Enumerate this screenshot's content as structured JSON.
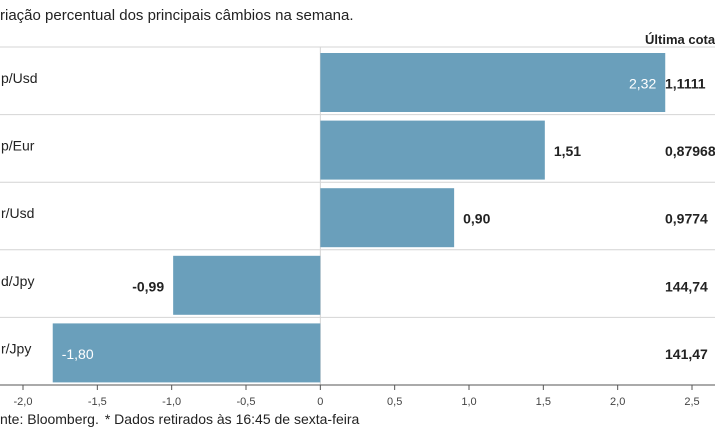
{
  "subtitle": "riação percentual dos principais câmbios na semana.",
  "last_quote_header": "Última cotaç",
  "colors": {
    "bar": "#6a9fbb",
    "grid": "#d4d4d4",
    "axis": "#555555",
    "text": "#222222"
  },
  "chart_data": {
    "type": "bar",
    "orientation": "horizontal",
    "title": "Variação percentual dos principais câmbios na semana",
    "categories": [
      "p/Usd",
      "p/Eur",
      "r/Usd",
      "d/Jpy",
      "r/Jpy"
    ],
    "values": [
      2.32,
      1.51,
      0.9,
      -0.99,
      -1.8
    ],
    "value_labels": [
      "2,32",
      "1,51",
      "0,90",
      "-0,99",
      "-1,80"
    ],
    "last_quotes": [
      "1,1111",
      "0,87968",
      "0,9774",
      "144,74",
      "141,47"
    ],
    "xlim": [
      -2.0,
      2.5
    ],
    "x_ticks": [
      -2.0,
      -1.5,
      -1.0,
      -0.5,
      0,
      0.5,
      1.0,
      1.5,
      2.0,
      2.5
    ],
    "x_tick_labels": [
      "-2,0",
      "-1,5",
      "-1,0",
      "-0,5",
      "0",
      "0,5",
      "1,0",
      "1,5",
      "2,0",
      "2,5"
    ],
    "xlabel": "",
    "ylabel": ""
  },
  "source": {
    "text": "nte: Bloomberg.",
    "note": "* Dados retirados às 16:45 de sexta-feira"
  }
}
